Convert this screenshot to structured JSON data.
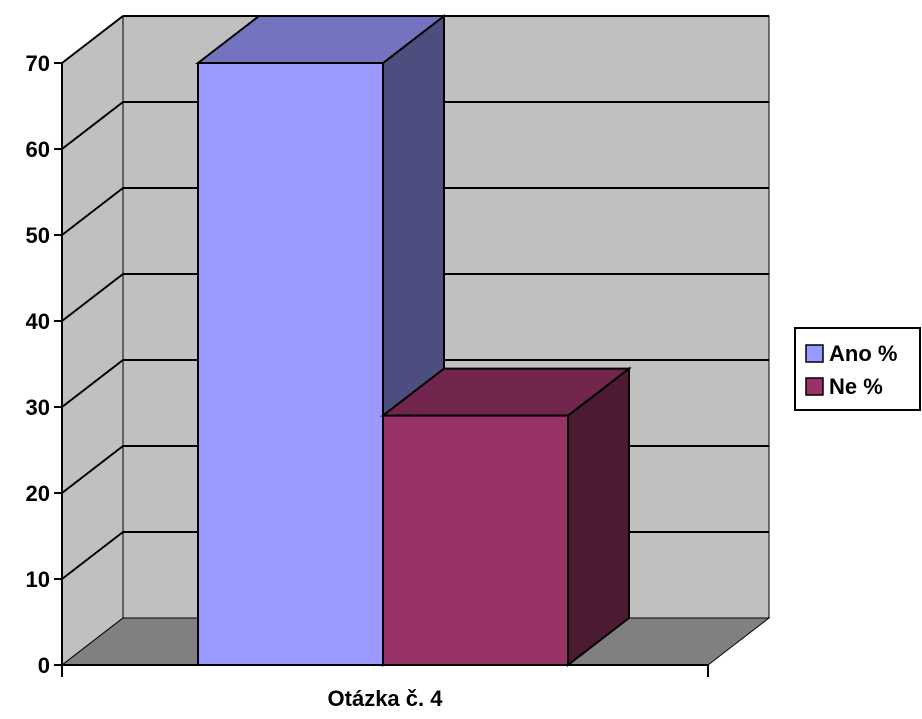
{
  "chart_data": {
    "type": "bar",
    "style": "3d-clustered-column",
    "categories": [
      "Otázka č. 4"
    ],
    "series": [
      {
        "name": "Ano %",
        "values": [
          70
        ],
        "color": "#9999FF"
      },
      {
        "name": "Ne %",
        "values": [
          29
        ],
        "color": "#993366"
      }
    ],
    "ylim": [
      0,
      70
    ],
    "yticks": [
      "0",
      "10",
      "20",
      "30",
      "40",
      "50",
      "60",
      "70"
    ],
    "grid": true,
    "legend": "right",
    "colors": {
      "back_wall": "#C0C0C0",
      "floor": "#808080",
      "gridline": "#000000"
    }
  }
}
